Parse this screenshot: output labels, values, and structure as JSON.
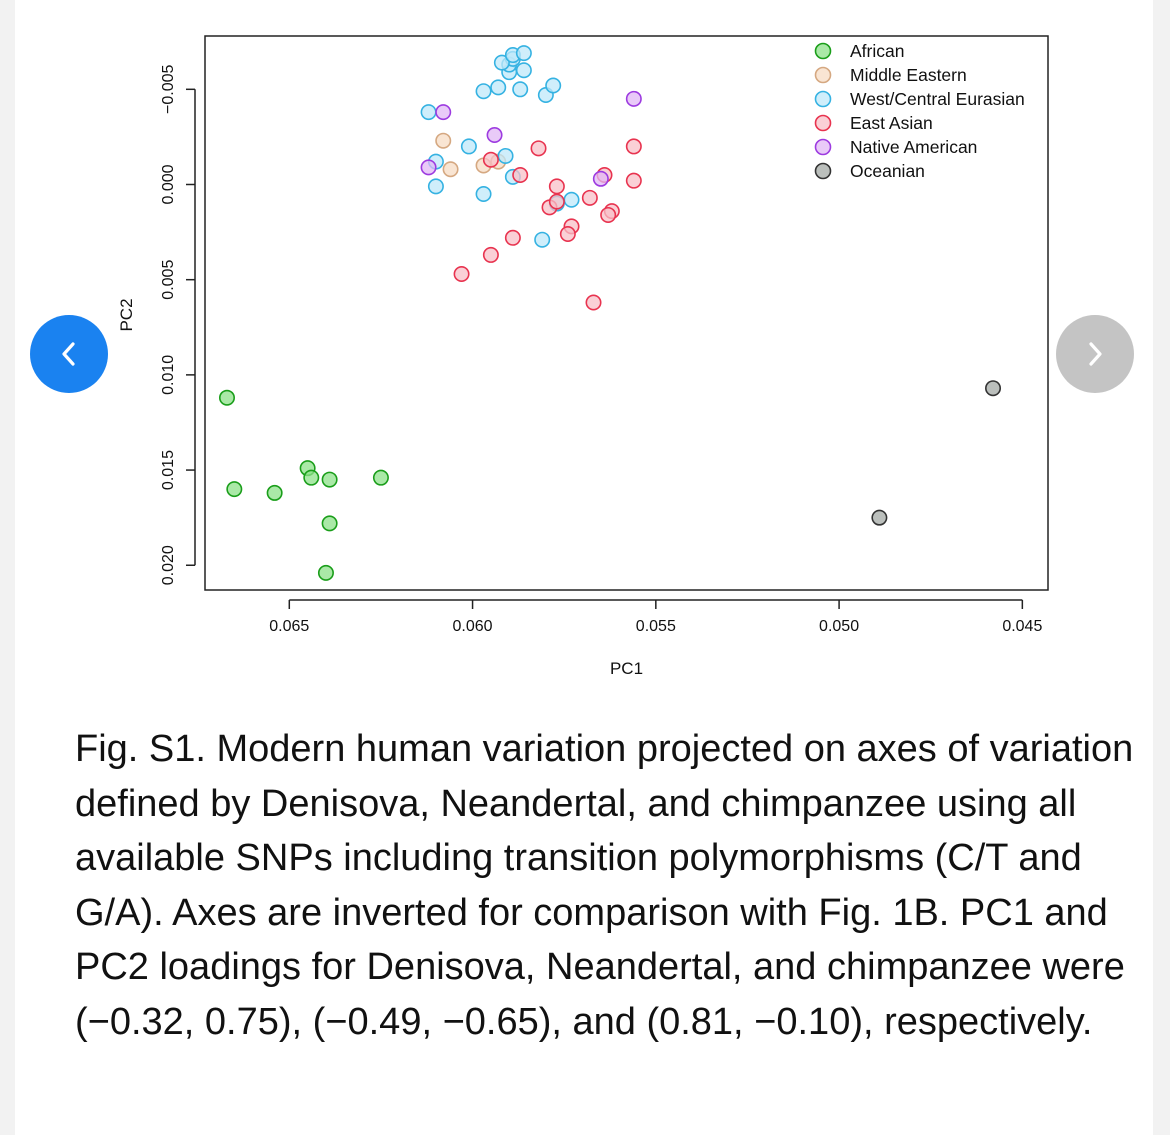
{
  "chart_data": {
    "type": "scatter",
    "xlabel": "PC1",
    "ylabel": "PC2",
    "xlim": [
      0.0673,
      0.0443
    ],
    "ylim": [
      -0.0078,
      0.0213
    ],
    "x_inverted": true,
    "y_inverted": true,
    "xticks": [
      0.065,
      0.06,
      0.055,
      0.05,
      0.045
    ],
    "xtick_labels": [
      "0.065",
      "0.060",
      "0.055",
      "0.050",
      "0.045"
    ],
    "yticks": [
      -0.005,
      0.0,
      0.005,
      0.01,
      0.015,
      0.02
    ],
    "ytick_labels": [
      "−0.005",
      "0.000",
      "0.005",
      "0.010",
      "0.015",
      "0.020"
    ],
    "legend_position": "top-right",
    "series": [
      {
        "name": "African",
        "fill": "#8ee28a",
        "stroke": "#1a9e1a",
        "points": [
          [
            0.0667,
            0.0112
          ],
          [
            0.0665,
            0.016
          ],
          [
            0.0654,
            0.0162
          ],
          [
            0.0645,
            0.0149
          ],
          [
            0.0644,
            0.0154
          ],
          [
            0.0639,
            0.0155
          ],
          [
            0.0625,
            0.0154
          ],
          [
            0.0639,
            0.0178
          ],
          [
            0.064,
            0.0204
          ]
        ]
      },
      {
        "name": "Middle Eastern",
        "fill": "#f7dcc4",
        "stroke": "#d5a881",
        "points": [
          [
            0.0608,
            -0.0023
          ],
          [
            0.0606,
            -0.0008
          ],
          [
            0.0597,
            -0.001
          ],
          [
            0.0593,
            -0.0012
          ]
        ]
      },
      {
        "name": "West/Central Eurasian",
        "fill": "#bfe8fa",
        "stroke": "#35b2e2",
        "points": [
          [
            0.0587,
            -0.005
          ],
          [
            0.0586,
            -0.006
          ],
          [
            0.059,
            -0.0059
          ],
          [
            0.059,
            -0.0063
          ],
          [
            0.0589,
            -0.0066
          ],
          [
            0.0592,
            -0.0064
          ],
          [
            0.0589,
            -0.0068
          ],
          [
            0.0586,
            -0.0069
          ],
          [
            0.0593,
            -0.0051
          ],
          [
            0.0597,
            -0.0049
          ],
          [
            0.058,
            -0.0047
          ],
          [
            0.0578,
            -0.0052
          ],
          [
            0.0612,
            -0.0038
          ],
          [
            0.0601,
            -0.002
          ],
          [
            0.061,
            -0.0012
          ],
          [
            0.061,
            0.0001
          ],
          [
            0.0597,
            0.0005
          ],
          [
            0.0591,
            -0.0015
          ],
          [
            0.0589,
            -0.0004
          ],
          [
            0.0577,
            0.001
          ],
          [
            0.0573,
            0.0008
          ],
          [
            0.0581,
            0.0029
          ]
        ]
      },
      {
        "name": "East Asian",
        "fill": "#f8c0c8",
        "stroke": "#e8334f",
        "points": [
          [
            0.0582,
            -0.0019
          ],
          [
            0.0587,
            -0.0005
          ],
          [
            0.0595,
            -0.0013
          ],
          [
            0.0577,
            0.0001
          ],
          [
            0.0579,
            0.0012
          ],
          [
            0.0577,
            0.0009
          ],
          [
            0.0568,
            0.0007
          ],
          [
            0.0564,
            -0.0005
          ],
          [
            0.0556,
            -0.002
          ],
          [
            0.0556,
            -0.0002
          ],
          [
            0.0562,
            0.0014
          ],
          [
            0.0563,
            0.0016
          ],
          [
            0.0573,
            0.0022
          ],
          [
            0.0574,
            0.0026
          ],
          [
            0.0589,
            0.0028
          ],
          [
            0.0595,
            0.0037
          ],
          [
            0.0603,
            0.0047
          ],
          [
            0.0567,
            0.0062
          ]
        ]
      },
      {
        "name": "Native American",
        "fill": "#e1b8f5",
        "stroke": "#9d3be0",
        "points": [
          [
            0.0608,
            -0.0038
          ],
          [
            0.0612,
            -0.0009
          ],
          [
            0.0594,
            -0.0026
          ],
          [
            0.0556,
            -0.0045
          ],
          [
            0.0565,
            -0.0003
          ]
        ]
      },
      {
        "name": "Oceanian",
        "fill": "#a4aaa6",
        "stroke": "#333333",
        "points": [
          [
            0.0458,
            0.0107
          ],
          [
            0.0489,
            0.0175
          ]
        ]
      }
    ]
  },
  "caption": {
    "text": "Fig. S1. Modern human variation projected on axes of variation defined by Denisova, Neandertal, and chimpanzee using all available SNPs including transition polymorphisms (C/T and G/A). Axes are inverted for comparison with Fig. 1B. PC1 and PC2 loadings for Denisova, Neandertal, and chimpanzee were (−0.32, 0.75), (−0.49, −0.65), and (0.81, −0.10), respectively."
  },
  "nav": {
    "prev_color": "#1a82f0",
    "next_color": "#c4c4c4"
  }
}
